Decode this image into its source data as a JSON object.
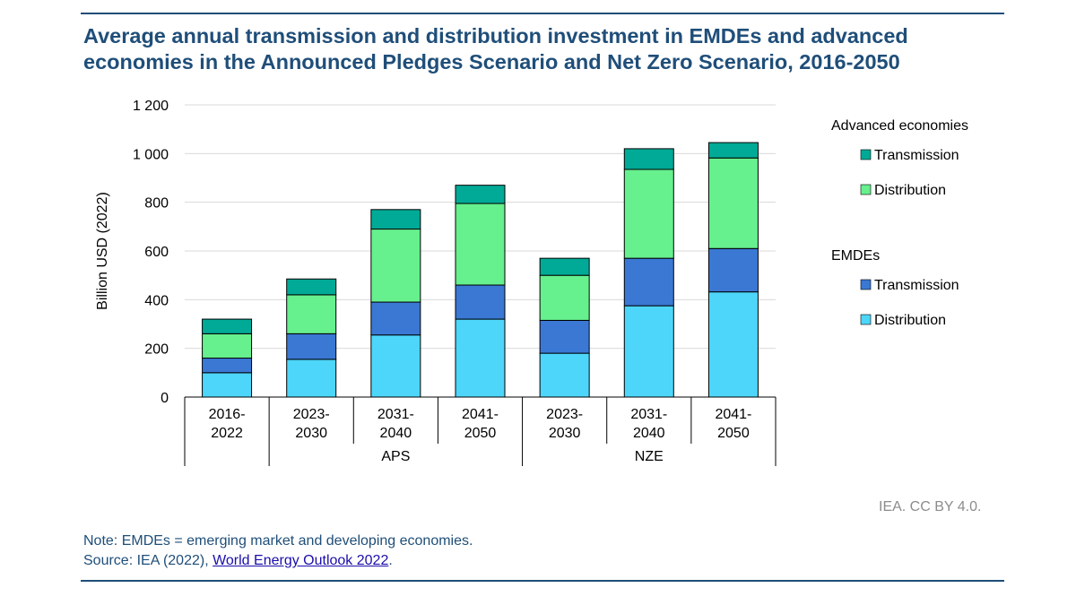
{
  "title": "Average annual transmission and distribution investment in EMDEs and advanced economies in the Announced Pledges Scenario and Net Zero Scenario, 2016-2050",
  "credit": "IEA. CC BY 4.0.",
  "note": {
    "line1": "Note: EMDEs = emerging market and developing economies.",
    "source_prefix": "Source: IEA (2022), ",
    "source_link": "World Energy Outlook 2022",
    "source_suffix": "."
  },
  "colors": {
    "adv_transmission": "#00aa96",
    "adv_distribution": "#66f08e",
    "emde_transmission": "#3a78d4",
    "emde_distribution": "#4dd6fa"
  },
  "chart_data": {
    "type": "bar",
    "stacked": true,
    "title": "Average annual transmission and distribution investment in EMDEs and advanced economies in the Announced Pledges Scenario and Net Zero Scenario, 2016-2050",
    "ylabel": "Billion USD (2022)",
    "ylim": [
      0,
      1200
    ],
    "yticks": [
      0,
      200,
      400,
      600,
      800,
      1000,
      1200
    ],
    "ytick_labels": [
      "0",
      "200",
      "400",
      "600",
      "800",
      "1 000",
      "1 200"
    ],
    "grid": true,
    "categories": [
      [
        "2016-",
        "2022"
      ],
      [
        "2023-",
        "2030"
      ],
      [
        "2031-",
        "2040"
      ],
      [
        "2041-",
        "2050"
      ],
      [
        "2023-",
        "2030"
      ],
      [
        "2031-",
        "2040"
      ],
      [
        "2041-",
        "2050"
      ]
    ],
    "groups": [
      {
        "label": "",
        "start": 0,
        "end": 0
      },
      {
        "label": "APS",
        "start": 1,
        "end": 3
      },
      {
        "label": "NZE",
        "start": 4,
        "end": 6
      }
    ],
    "series": [
      {
        "name": "Distribution",
        "group": "EMDEs",
        "color_key": "emde_distribution",
        "values": [
          100,
          155,
          255,
          320,
          180,
          375,
          432
        ]
      },
      {
        "name": "Transmission",
        "group": "EMDEs",
        "color_key": "emde_transmission",
        "values": [
          60,
          105,
          135,
          140,
          135,
          195,
          178
        ]
      },
      {
        "name": "Distribution",
        "group": "Advanced economies",
        "color_key": "adv_distribution",
        "values": [
          100,
          160,
          300,
          335,
          185,
          365,
          372
        ]
      },
      {
        "name": "Transmission",
        "group": "Advanced economies",
        "color_key": "adv_transmission",
        "values": [
          60,
          65,
          80,
          75,
          70,
          85,
          63
        ]
      }
    ],
    "legend": [
      {
        "title": "Advanced economies",
        "items": [
          {
            "label": "Transmission",
            "color_key": "adv_transmission"
          },
          {
            "label": "Distribution",
            "color_key": "adv_distribution"
          }
        ]
      },
      {
        "title": "EMDEs",
        "items": [
          {
            "label": "Transmission",
            "color_key": "emde_transmission"
          },
          {
            "label": "Distribution",
            "color_key": "emde_distribution"
          }
        ]
      }
    ],
    "legend_position": "right"
  }
}
